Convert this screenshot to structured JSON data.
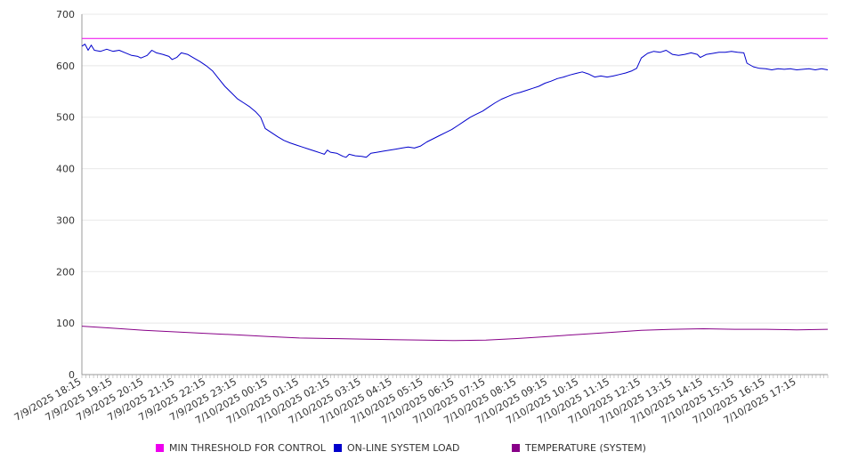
{
  "chart_data": {
    "type": "line",
    "title": "",
    "xlabel": "",
    "ylabel": "",
    "ylim": [
      0,
      700
    ],
    "y_ticks": [
      0,
      100,
      200,
      300,
      400,
      500,
      600,
      700
    ],
    "x_labels": [
      "7/9/2025 18:15",
      "7/9/2025 19:15",
      "7/9/2025 20:15",
      "7/9/2025 21:15",
      "7/9/2025 22:15",
      "7/9/2025 23:15",
      "7/10/2025 00:15",
      "7/10/2025 01:15",
      "7/10/2025 02:15",
      "7/10/2025 03:15",
      "7/10/2025 04:15",
      "7/10/2025 05:15",
      "7/10/2025 06:15",
      "7/10/2025 07:15",
      "7/10/2025 08:15",
      "7/10/2025 09:15",
      "7/10/2025 10:15",
      "7/10/2025 11:15",
      "7/10/2025 12:15",
      "7/10/2025 13:15",
      "7/10/2025 14:15",
      "7/10/2025 15:15",
      "7/10/2025 16:15",
      "7/10/2025 17:15"
    ],
    "grid": true,
    "legend_position": "bottom",
    "series": [
      {
        "name": "MIN THRESHOLD FOR CONTROL",
        "color": "#ee00ee",
        "points": [
          [
            0,
            653
          ],
          [
            24,
            653
          ]
        ]
      },
      {
        "name": "ON-LINE SYSTEM LOAD",
        "color": "#0000cc",
        "points": [
          [
            0,
            638
          ],
          [
            0.1,
            642
          ],
          [
            0.2,
            630
          ],
          [
            0.3,
            640
          ],
          [
            0.4,
            630
          ],
          [
            0.6,
            628
          ],
          [
            0.8,
            632
          ],
          [
            1.0,
            628
          ],
          [
            1.2,
            630
          ],
          [
            1.4,
            625
          ],
          [
            1.6,
            620
          ],
          [
            1.8,
            618
          ],
          [
            1.9,
            615
          ],
          [
            2.1,
            620
          ],
          [
            2.25,
            630
          ],
          [
            2.4,
            625
          ],
          [
            2.6,
            622
          ],
          [
            2.8,
            618
          ],
          [
            2.9,
            612
          ],
          [
            3.05,
            616
          ],
          [
            3.2,
            625
          ],
          [
            3.4,
            622
          ],
          [
            3.6,
            615
          ],
          [
            3.8,
            608
          ],
          [
            4.0,
            600
          ],
          [
            4.2,
            590
          ],
          [
            4.4,
            575
          ],
          [
            4.6,
            560
          ],
          [
            4.8,
            548
          ],
          [
            5.0,
            536
          ],
          [
            5.2,
            528
          ],
          [
            5.4,
            520
          ],
          [
            5.6,
            510
          ],
          [
            5.75,
            500
          ],
          [
            5.9,
            478
          ],
          [
            6.1,
            470
          ],
          [
            6.3,
            462
          ],
          [
            6.5,
            455
          ],
          [
            6.7,
            450
          ],
          [
            6.9,
            446
          ],
          [
            7.1,
            442
          ],
          [
            7.3,
            438
          ],
          [
            7.5,
            434
          ],
          [
            7.7,
            430
          ],
          [
            7.8,
            428
          ],
          [
            7.9,
            436
          ],
          [
            8.0,
            432
          ],
          [
            8.2,
            430
          ],
          [
            8.4,
            424
          ],
          [
            8.5,
            422
          ],
          [
            8.6,
            428
          ],
          [
            8.8,
            425
          ],
          [
            9.0,
            424
          ],
          [
            9.15,
            422
          ],
          [
            9.3,
            430
          ],
          [
            9.5,
            432
          ],
          [
            9.7,
            434
          ],
          [
            9.9,
            436
          ],
          [
            10.1,
            438
          ],
          [
            10.3,
            440
          ],
          [
            10.5,
            442
          ],
          [
            10.7,
            440
          ],
          [
            10.9,
            444
          ],
          [
            11.1,
            452
          ],
          [
            11.3,
            458
          ],
          [
            11.5,
            464
          ],
          [
            11.7,
            470
          ],
          [
            11.9,
            476
          ],
          [
            12.1,
            484
          ],
          [
            12.3,
            492
          ],
          [
            12.5,
            500
          ],
          [
            12.7,
            506
          ],
          [
            12.9,
            512
          ],
          [
            13.1,
            520
          ],
          [
            13.3,
            528
          ],
          [
            13.5,
            535
          ],
          [
            13.7,
            540
          ],
          [
            13.9,
            545
          ],
          [
            14.1,
            548
          ],
          [
            14.3,
            552
          ],
          [
            14.5,
            556
          ],
          [
            14.7,
            560
          ],
          [
            14.9,
            566
          ],
          [
            15.1,
            570
          ],
          [
            15.3,
            575
          ],
          [
            15.5,
            578
          ],
          [
            15.7,
            582
          ],
          [
            15.9,
            585
          ],
          [
            16.1,
            588
          ],
          [
            16.3,
            584
          ],
          [
            16.5,
            578
          ],
          [
            16.7,
            580
          ],
          [
            16.9,
            578
          ],
          [
            17.1,
            580
          ],
          [
            17.3,
            583
          ],
          [
            17.5,
            586
          ],
          [
            17.7,
            590
          ],
          [
            17.85,
            595
          ],
          [
            18.0,
            615
          ],
          [
            18.2,
            624
          ],
          [
            18.4,
            628
          ],
          [
            18.6,
            626
          ],
          [
            18.8,
            630
          ],
          [
            19.0,
            622
          ],
          [
            19.2,
            620
          ],
          [
            19.4,
            622
          ],
          [
            19.6,
            625
          ],
          [
            19.8,
            622
          ],
          [
            19.9,
            616
          ],
          [
            20.1,
            622
          ],
          [
            20.3,
            624
          ],
          [
            20.5,
            626
          ],
          [
            20.7,
            626
          ],
          [
            20.9,
            628
          ],
          [
            21.1,
            626
          ],
          [
            21.3,
            625
          ],
          [
            21.4,
            605
          ],
          [
            21.6,
            598
          ],
          [
            21.8,
            595
          ],
          [
            22.0,
            594
          ],
          [
            22.2,
            592
          ],
          [
            22.4,
            594
          ],
          [
            22.6,
            593
          ],
          [
            22.8,
            594
          ],
          [
            23.0,
            592
          ],
          [
            23.2,
            593
          ],
          [
            23.4,
            594
          ],
          [
            23.6,
            592
          ],
          [
            23.8,
            594
          ],
          [
            24.0,
            592
          ]
        ]
      },
      {
        "name": "TEMPERATURE (SYSTEM)",
        "color": "#880088",
        "points": [
          [
            0,
            94
          ],
          [
            1,
            90
          ],
          [
            2,
            86
          ],
          [
            3,
            83
          ],
          [
            4,
            80
          ],
          [
            5,
            77
          ],
          [
            6,
            74
          ],
          [
            7,
            71
          ],
          [
            8,
            70
          ],
          [
            9,
            69
          ],
          [
            10,
            68
          ],
          [
            11,
            67
          ],
          [
            12,
            66
          ],
          [
            13,
            67
          ],
          [
            14,
            70
          ],
          [
            15,
            74
          ],
          [
            16,
            78
          ],
          [
            17,
            82
          ],
          [
            18,
            86
          ],
          [
            19,
            88
          ],
          [
            20,
            89
          ],
          [
            21,
            88
          ],
          [
            22,
            88
          ],
          [
            23,
            87
          ],
          [
            24,
            88
          ]
        ]
      }
    ]
  }
}
